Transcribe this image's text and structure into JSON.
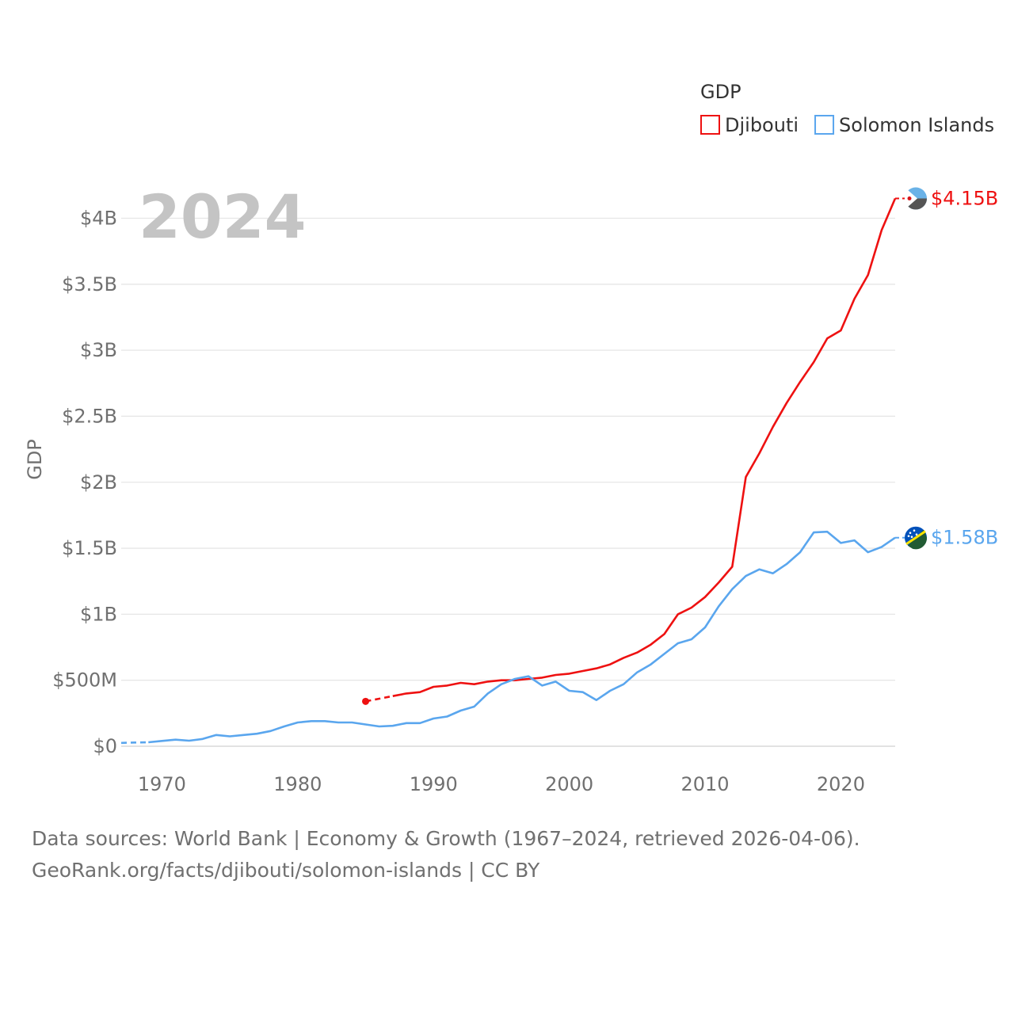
{
  "chart_data": {
    "type": "line",
    "title": "",
    "year_label": "2024",
    "ylabel": "GDP",
    "xlabel": "",
    "xlim": [
      1967,
      2024
    ],
    "ylim": [
      0,
      4.3
    ],
    "x_ticks": [
      1970,
      1980,
      1990,
      2000,
      2010,
      2020
    ],
    "y_ticks": [
      {
        "value": 0,
        "label": "$0"
      },
      {
        "value": 0.5,
        "label": "$500M"
      },
      {
        "value": 1,
        "label": "$1B"
      },
      {
        "value": 1.5,
        "label": "$1.5B"
      },
      {
        "value": 2,
        "label": "$2B"
      },
      {
        "value": 2.5,
        "label": "$2.5B"
      },
      {
        "value": 3,
        "label": "$3B"
      },
      {
        "value": 3.5,
        "label": "$3.5B"
      },
      {
        "value": 4,
        "label": "$4B"
      }
    ],
    "units": "USD billions",
    "legend": {
      "title": "GDP",
      "position": "top-right"
    },
    "series": [
      {
        "name": "Djibouti",
        "color": "#ee1111",
        "end_label": "$4.15B",
        "marker_icon": "djibouti-flag-icon",
        "x": [
          1985,
          1986,
          1987,
          1988,
          1989,
          1990,
          1991,
          1992,
          1993,
          1994,
          1995,
          1996,
          1997,
          1998,
          1999,
          2000,
          2001,
          2002,
          2003,
          2004,
          2005,
          2006,
          2007,
          2008,
          2009,
          2010,
          2011,
          2012,
          2013,
          2014,
          2015,
          2016,
          2017,
          2018,
          2019,
          2020,
          2021,
          2022,
          2023,
          2024
        ],
        "values": [
          0.34,
          0.36,
          0.38,
          0.4,
          0.41,
          0.45,
          0.46,
          0.48,
          0.47,
          0.49,
          0.5,
          0.5,
          0.51,
          0.52,
          0.54,
          0.55,
          0.57,
          0.59,
          0.62,
          0.67,
          0.71,
          0.77,
          0.85,
          1.0,
          1.05,
          1.13,
          1.24,
          1.36,
          2.04,
          2.22,
          2.42,
          2.6,
          2.76,
          2.91,
          3.09,
          3.15,
          3.39,
          3.57,
          3.91,
          4.15
        ]
      },
      {
        "name": "Solomon Islands",
        "color": "#5aa6ee",
        "end_label": "$1.58B",
        "marker_icon": "solomon-islands-flag-icon",
        "x": [
          1967,
          1968,
          1969,
          1970,
          1971,
          1972,
          1973,
          1974,
          1975,
          1976,
          1977,
          1978,
          1979,
          1980,
          1981,
          1982,
          1983,
          1984,
          1985,
          1986,
          1987,
          1988,
          1989,
          1990,
          1991,
          1992,
          1993,
          1994,
          1995,
          1996,
          1997,
          1998,
          1999,
          2000,
          2001,
          2002,
          2003,
          2004,
          2005,
          2006,
          2007,
          2008,
          2009,
          2010,
          2011,
          2012,
          2013,
          2014,
          2015,
          2016,
          2017,
          2018,
          2019,
          2020,
          2021,
          2022,
          2023,
          2024
        ],
        "values": [
          0.025,
          0.028,
          0.03,
          0.04,
          0.05,
          0.042,
          0.055,
          0.085,
          0.075,
          0.085,
          0.095,
          0.115,
          0.15,
          0.18,
          0.19,
          0.19,
          0.18,
          0.18,
          0.165,
          0.15,
          0.155,
          0.175,
          0.175,
          0.21,
          0.225,
          0.27,
          0.3,
          0.4,
          0.47,
          0.51,
          0.53,
          0.46,
          0.49,
          0.42,
          0.41,
          0.35,
          0.42,
          0.47,
          0.56,
          0.62,
          0.7,
          0.78,
          0.81,
          0.9,
          1.06,
          1.19,
          1.29,
          1.34,
          1.31,
          1.38,
          1.47,
          1.62,
          1.625,
          1.54,
          1.56,
          1.47,
          1.51,
          1.58
        ]
      }
    ]
  },
  "footer": {
    "source_line": "Data sources: World Bank | Economy & Growth (1967–2024, retrieved 2026-04-06).",
    "credit_line": "GeoRank.org/facts/djibouti/solomon-islands | CC BY"
  }
}
